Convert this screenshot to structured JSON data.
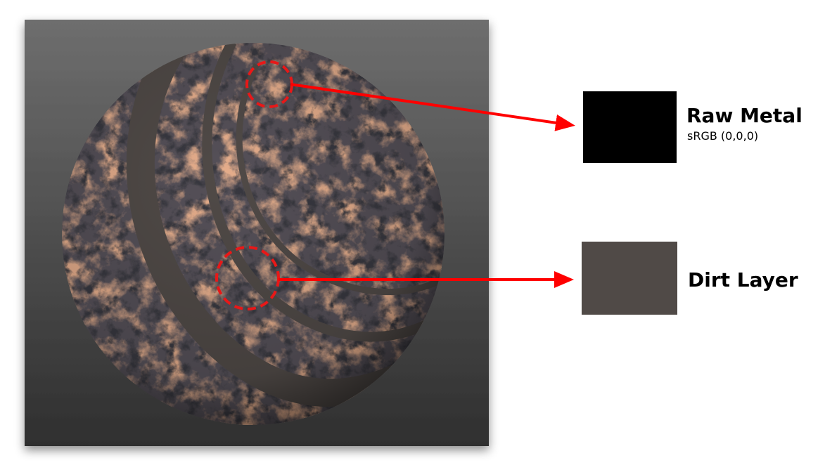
{
  "callouts": [
    {
      "title": "Raw Metal",
      "subtitle": "sRGB (0,0,0)",
      "swatch_color": "#000000"
    },
    {
      "title": "Dirt Layer",
      "subtitle": "",
      "swatch_color": "#504a47"
    }
  ],
  "colors": {
    "arrow": "#ff0000",
    "highlight_circle": "#e81818",
    "panel_top": "#6e6e6e",
    "panel_bottom": "#2f2f2f",
    "rust": "#b8633a",
    "dirt_band": "#504a47"
  }
}
